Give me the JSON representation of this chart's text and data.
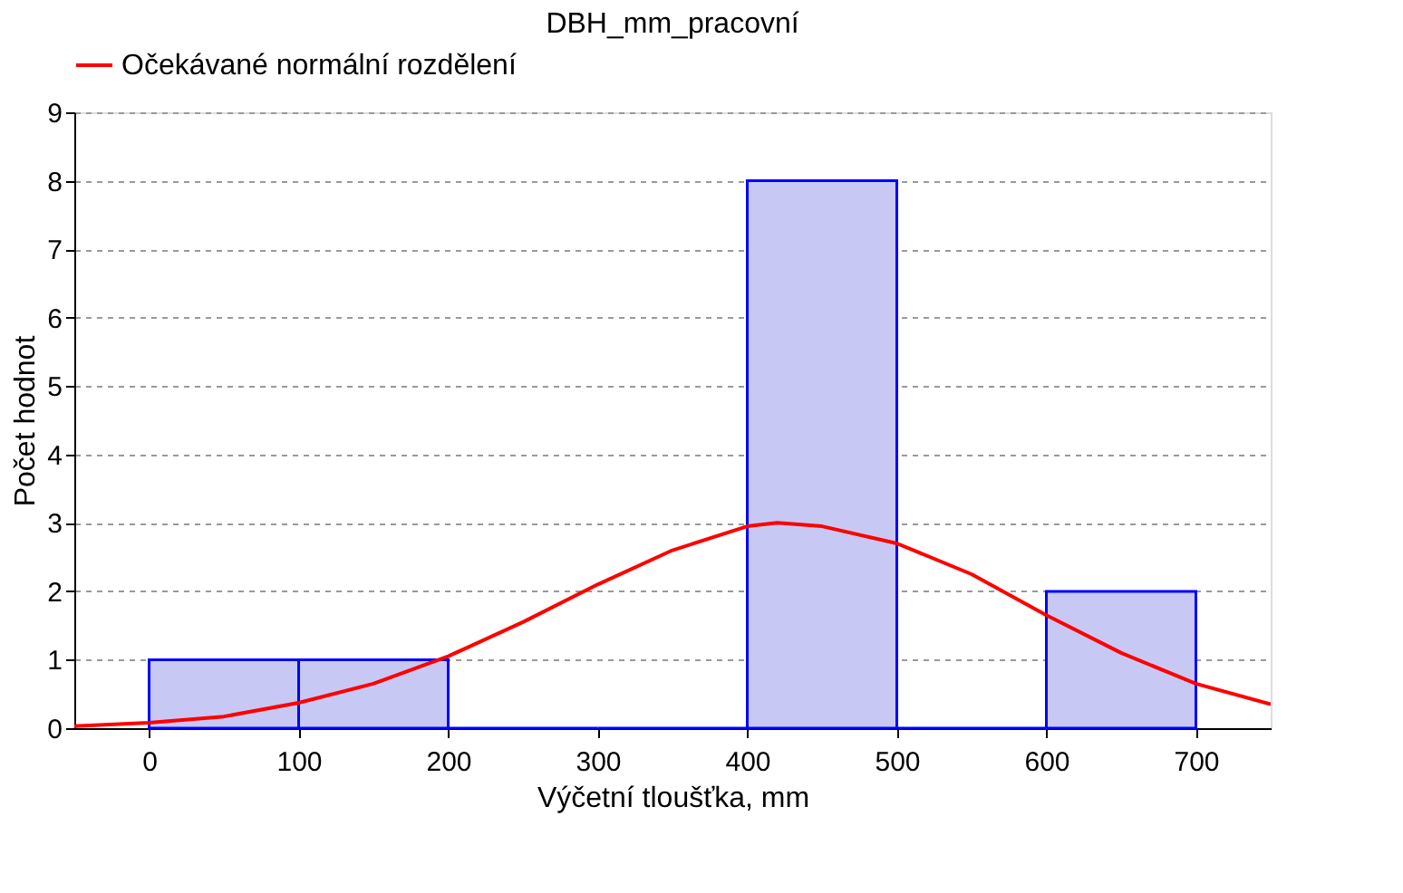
{
  "chart_data": {
    "type": "histogram",
    "title": "DBH_mm_pracovní",
    "xlabel": "Výčetní tloušťka, mm",
    "ylabel": "Počet hodnot",
    "bins": [
      0,
      100,
      200,
      300,
      400,
      500,
      600,
      700
    ],
    "values": [
      1,
      1,
      0,
      0,
      8,
      0,
      2
    ],
    "color": "#0000ff",
    "series": [
      {
        "type": "line",
        "name": "Očekávané normální rozdělení",
        "color": "#ff0000",
        "x": [
          -50,
          0,
          50,
          100,
          150,
          200,
          250,
          300,
          350,
          400,
          420,
          450,
          500,
          550,
          600,
          650,
          700,
          750
        ],
        "values": [
          0.03,
          0.08,
          0.17,
          0.37,
          0.65,
          1.05,
          1.55,
          2.1,
          2.6,
          2.95,
          3.0,
          2.95,
          2.7,
          2.25,
          1.65,
          1.1,
          0.65,
          0.35
        ]
      }
    ],
    "xlim": [
      -50,
      750
    ],
    "xticks": [
      0,
      100,
      200,
      300,
      400,
      500,
      600,
      700
    ],
    "ylim": [
      0,
      9
    ],
    "yticks": [
      0,
      1,
      2,
      3,
      4,
      5,
      6,
      7,
      8,
      9
    ],
    "grid": "y",
    "legend": "top"
  }
}
